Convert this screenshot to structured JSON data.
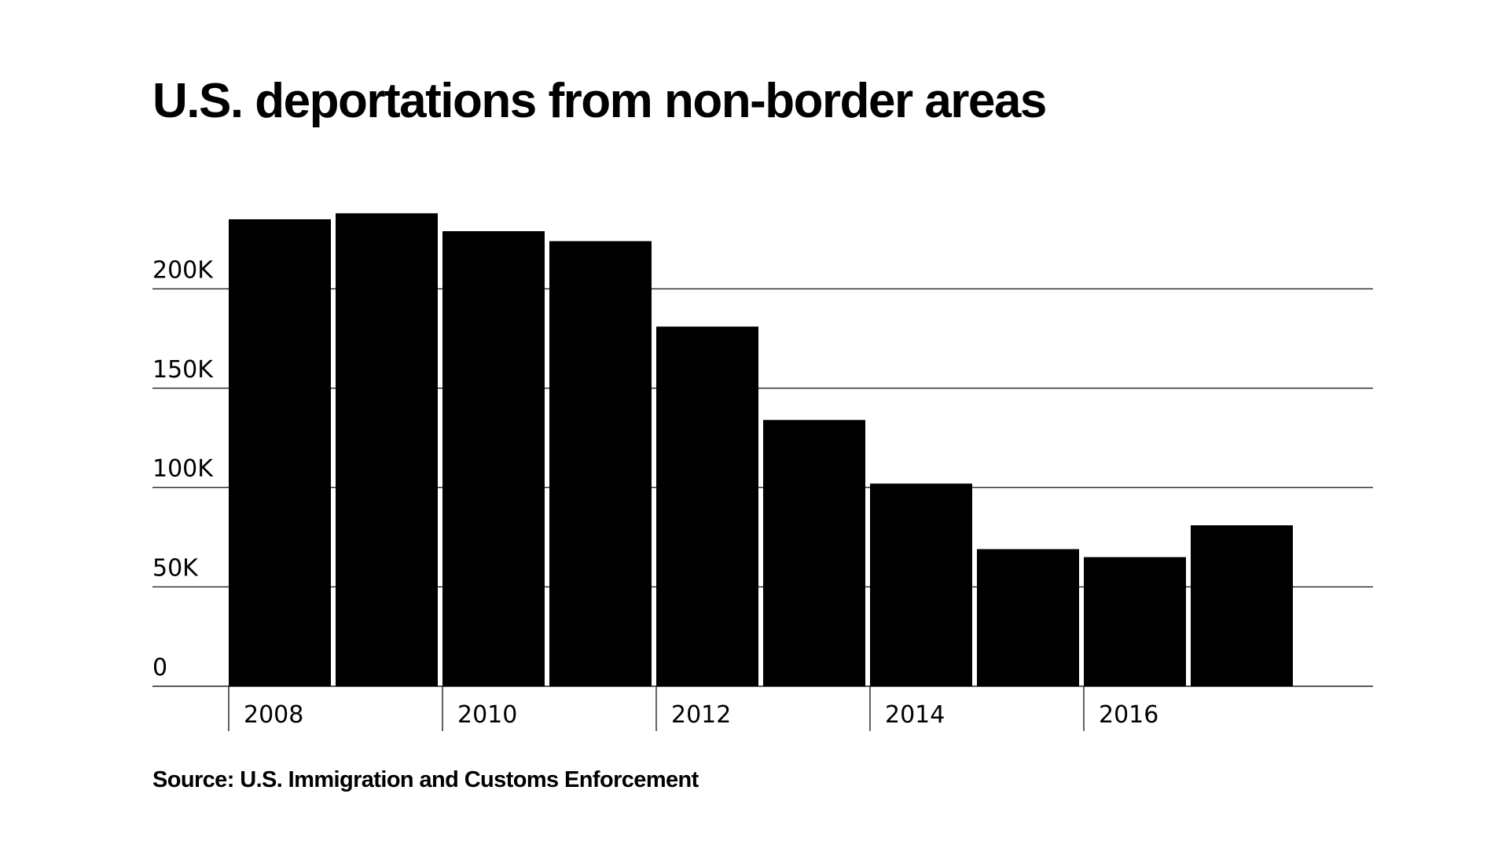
{
  "chart_data": {
    "type": "bar",
    "title": "U.S. deportations from non-border areas",
    "source": "Source: U.S. Immigration and Customs Enforcement",
    "categories": [
      "2008",
      "2009",
      "2010",
      "2011",
      "2012",
      "2013",
      "2014",
      "2015",
      "2016",
      "2017"
    ],
    "values": [
      235000,
      238000,
      229000,
      224000,
      181000,
      134000,
      102000,
      69000,
      65000,
      81000
    ],
    "x_tick_labels": [
      "2008",
      "2010",
      "2012",
      "2014",
      "2016"
    ],
    "y_ticks": [
      {
        "value": 0,
        "label": "0"
      },
      {
        "value": 50000,
        "label": "50K"
      },
      {
        "value": 100000,
        "label": "100K"
      },
      {
        "value": 150000,
        "label": "150K"
      },
      {
        "value": 200000,
        "label": "200K"
      }
    ],
    "ylim": [
      0,
      245000
    ],
    "xlabel": "",
    "ylabel": "",
    "grid": true,
    "colors": {
      "bar": "#000000",
      "grid": "#222222",
      "background": "#ffffff",
      "text": "#000000"
    }
  }
}
